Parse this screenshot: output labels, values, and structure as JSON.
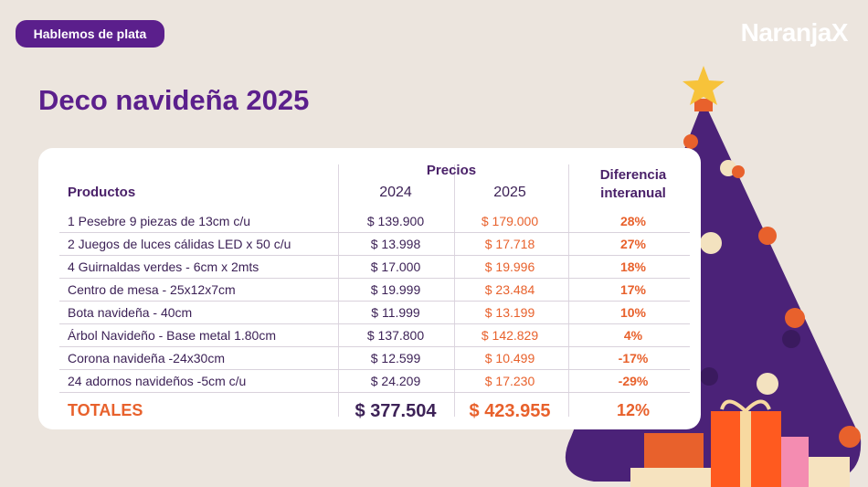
{
  "badge": "Hablemos de plata",
  "brand": "NaranjaX",
  "title": "Deco navideña 2025",
  "table": {
    "header": {
      "products": "Productos",
      "prices": "Precios",
      "year1": "2024",
      "year2": "2025",
      "diff": "Diferencia interanual"
    },
    "rows": [
      [
        "1 Pesebre 9 piezas de 13cm c/u",
        "$ 139.900",
        "$ 179.000",
        "28%"
      ],
      [
        "2 Juegos de luces cálidas LED x 50 c/u",
        "$ 13.998",
        "$ 17.718",
        "27%"
      ],
      [
        "4 Guirnaldas verdes - 6cm x 2mts",
        "$ 17.000",
        "$ 19.996",
        "18%"
      ],
      [
        "Centro de mesa - 25x12x7cm",
        "$ 19.999",
        "$ 23.484",
        "17%"
      ],
      [
        "Bota navideña - 40cm",
        "$ 11.999",
        "$ 13.199",
        "10%"
      ],
      [
        "Árbol Navideño - Base metal 1.80cm",
        "$ 137.800",
        "$ 142.829",
        "4%"
      ],
      [
        "Corona navideña -24x30cm",
        "$ 12.599",
        "$ 10.499",
        "-17%"
      ],
      [
        "24 adornos navideños -5cm c/u",
        "$ 24.209",
        "$ 17.230",
        "-29%"
      ]
    ],
    "totals": [
      "TOTALES",
      "$ 377.504",
      "$ 423.955",
      "12%"
    ]
  }
}
